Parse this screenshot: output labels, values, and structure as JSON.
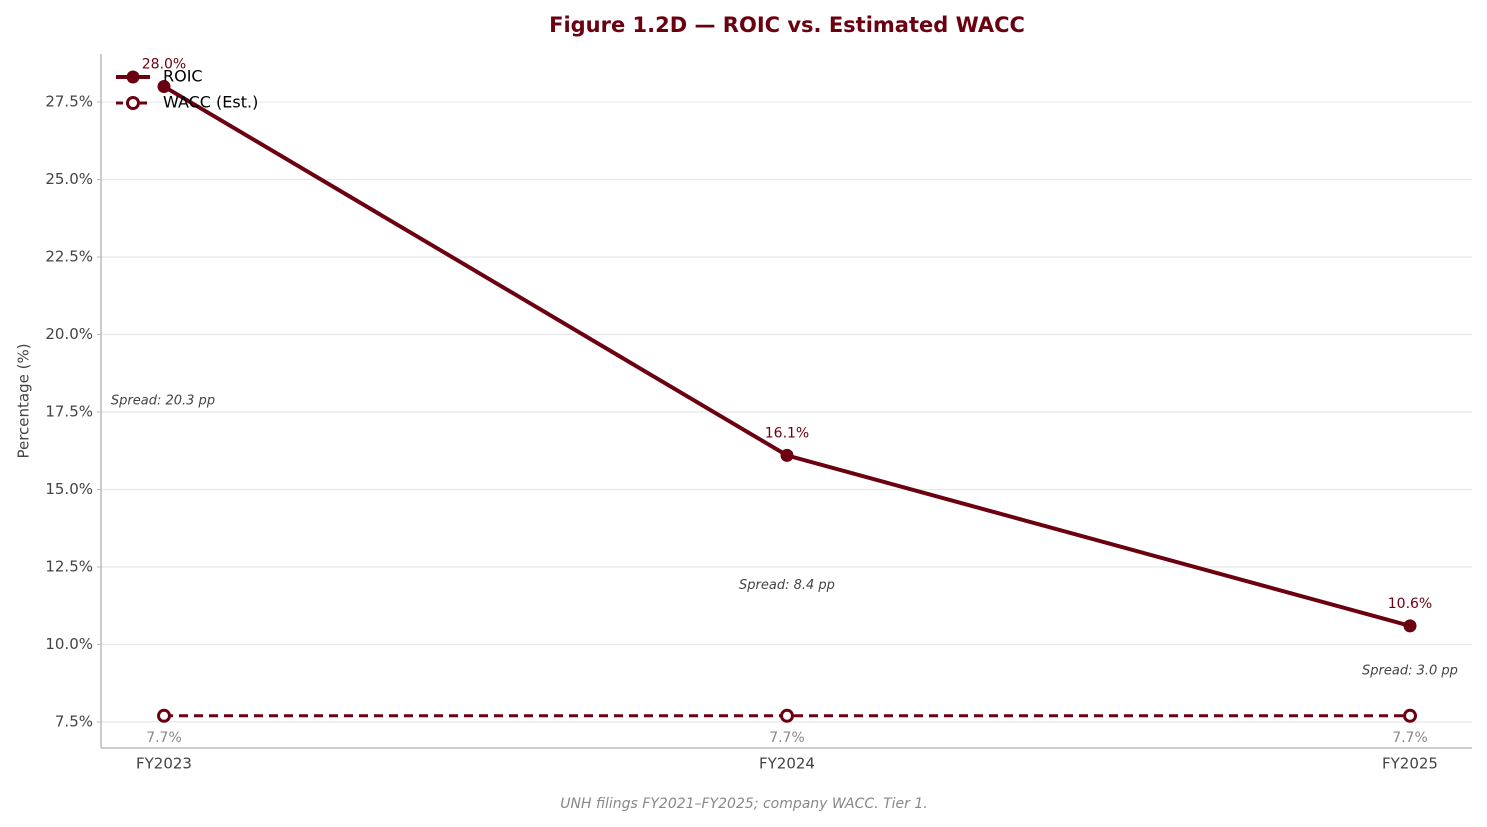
{
  "chart_data": {
    "type": "line",
    "title": "Figure 1.2D — ROIC vs. Estimated WACC",
    "y_label": "Percentage (%)",
    "source": "UNH filings FY2021–FY2025; company WACC. Tier 1.",
    "categories": [
      "FY2023",
      "FY2024",
      "FY2025"
    ],
    "series": [
      {
        "name": "ROIC",
        "color": "#6b0010",
        "dashed": false,
        "filled": true,
        "label_color": "#6b0010",
        "values": [
          28.0,
          16.1,
          10.6
        ],
        "value_labels": [
          "28.0%",
          "16.1%",
          "10.6%"
        ]
      },
      {
        "name": "WACC (Est.)",
        "color": "#6b0010",
        "dashed": true,
        "filled": false,
        "label_color": "#888888",
        "values": [
          7.7,
          7.7,
          7.7
        ],
        "value_labels": [
          "7.7%",
          "7.7%",
          "7.7%"
        ]
      }
    ],
    "annotations": [
      "Spread: 20.3 pp",
      "Spread: 8.4 pp",
      "Spread: 3.0 pp"
    ],
    "ylim": [
      6.66,
      29.05
    ],
    "yticks": [
      {
        "value": 7.5,
        "label": "7.5%"
      },
      {
        "value": 10.0,
        "label": "10.0%"
      },
      {
        "value": 12.5,
        "label": "12.5%"
      },
      {
        "value": 15.0,
        "label": "15.0%"
      },
      {
        "value": 17.5,
        "label": "17.5%"
      },
      {
        "value": 20.0,
        "label": "20.0%"
      },
      {
        "value": 22.5,
        "label": "22.5%"
      },
      {
        "value": 25.0,
        "label": "25.0%"
      },
      {
        "value": 27.5,
        "label": "27.5%"
      }
    ],
    "grid": true,
    "legend": "upper-left"
  }
}
